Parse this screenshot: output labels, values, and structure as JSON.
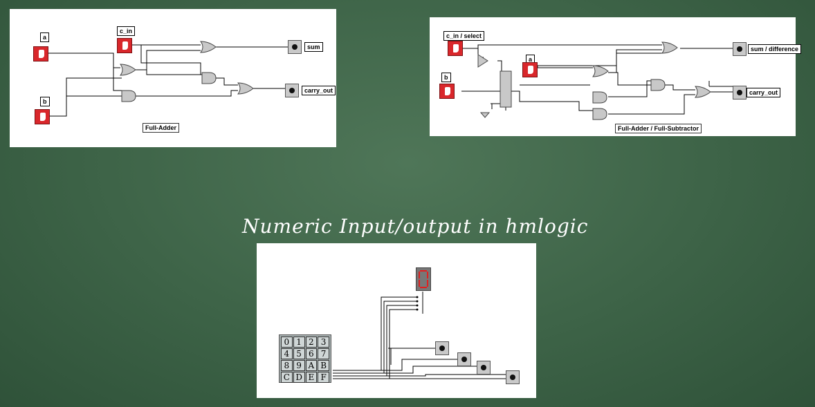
{
  "slide_title": "Numeric Input/output in hmlogic",
  "full_adder": {
    "inputs": [
      "a",
      "c_in",
      "b"
    ],
    "outputs": [
      "sum",
      "carry_out"
    ],
    "caption": "Full-Adder"
  },
  "full_adder_subtractor": {
    "inputs": [
      "c_in / select",
      "a",
      "b"
    ],
    "outputs": [
      "sum / difference",
      "carry_out"
    ],
    "caption": "Full-Adder / Full-Subtractor"
  },
  "numeric_io": {
    "keypad_keys": [
      "0",
      "1",
      "2",
      "3",
      "4",
      "5",
      "6",
      "7",
      "8",
      "9",
      "A",
      "B",
      "C",
      "D",
      "E",
      "F"
    ],
    "led_count": 4
  }
}
